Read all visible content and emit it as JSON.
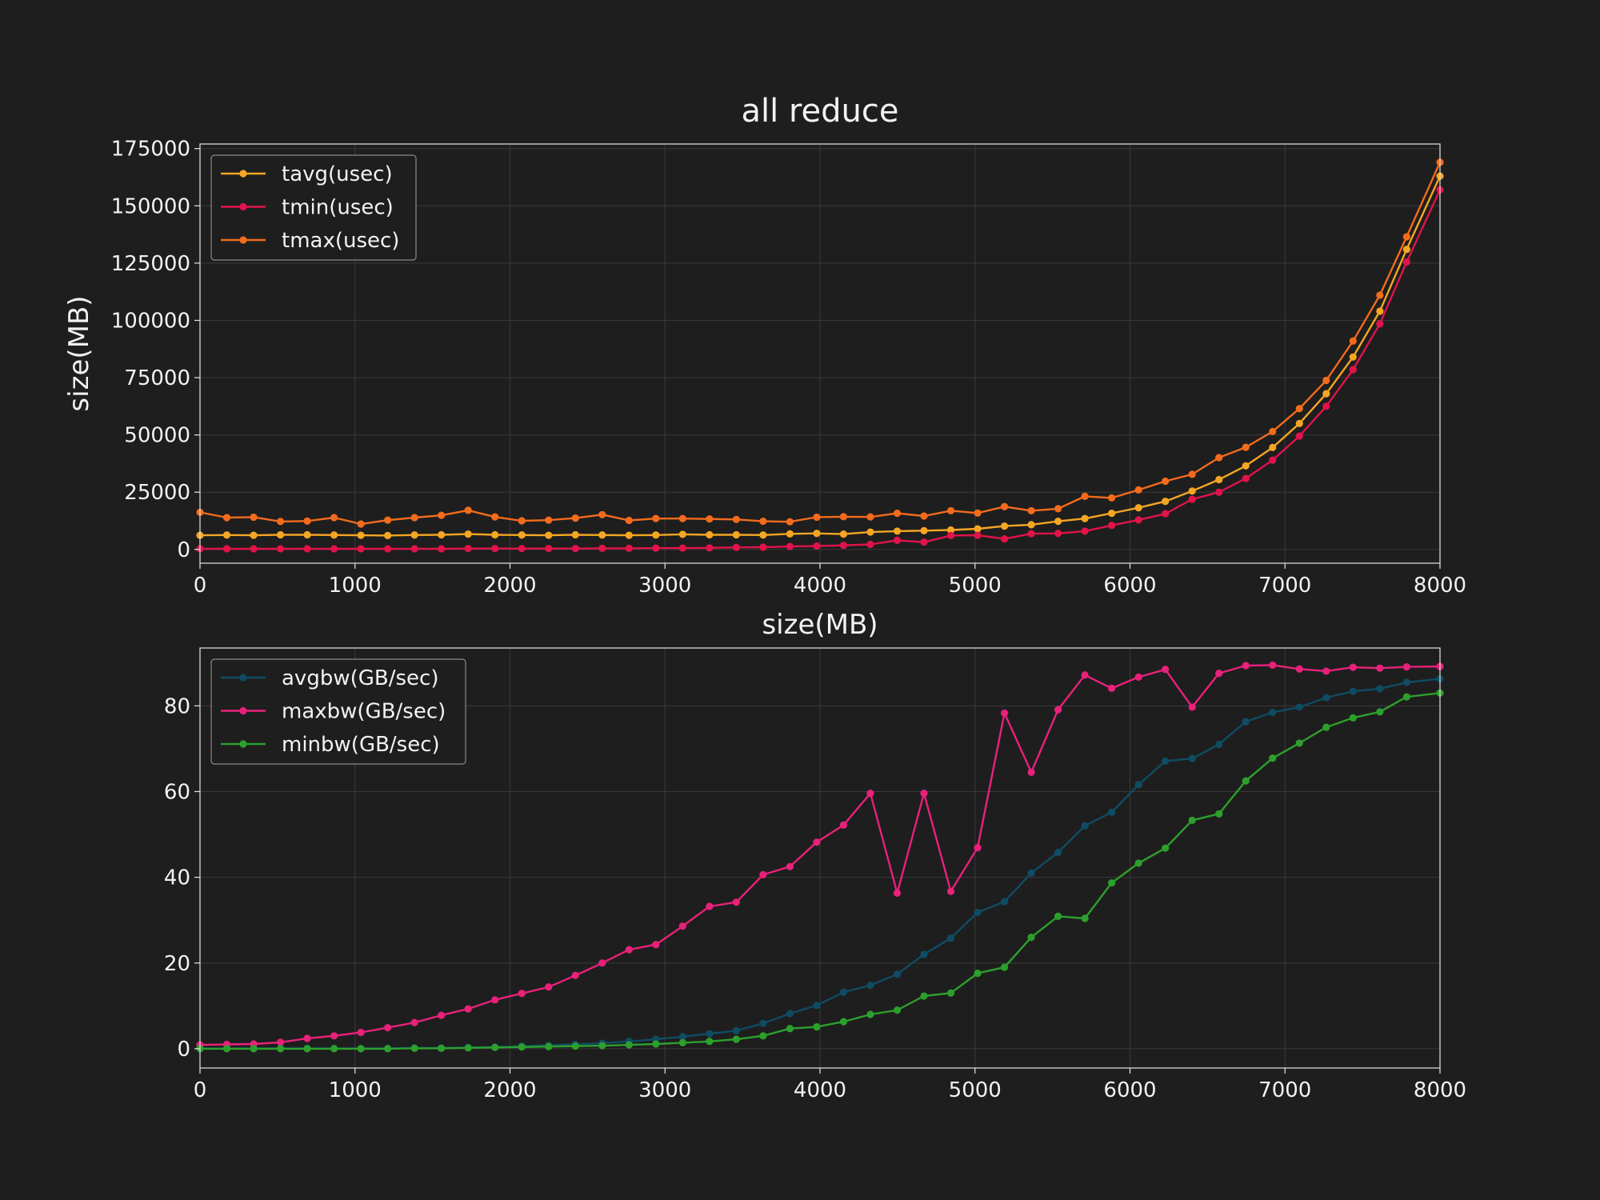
{
  "figure": {
    "title": "all reduce",
    "background": "#1e1e1e",
    "grid_color": "#3a3a3a"
  },
  "chart_data": [
    {
      "type": "line",
      "title": "all reduce",
      "xlabel": "size(MB)",
      "ylabel": "size(MB)",
      "xlim": [
        0,
        8000
      ],
      "ylim": [
        -6000,
        177000
      ],
      "xticks": [
        0,
        1000,
        2000,
        3000,
        4000,
        5000,
        6000,
        7000,
        8000
      ],
      "yticks": [
        0,
        25000,
        50000,
        75000,
        100000,
        125000,
        150000,
        175000
      ],
      "grid": true,
      "legend_position": "top-left",
      "x": [
        0,
        173,
        346,
        519,
        692,
        865,
        1038,
        1211,
        1384,
        1557,
        1730,
        1903,
        2076,
        2249,
        2422,
        2595,
        2768,
        2941,
        3114,
        3287,
        3460,
        3633,
        3806,
        3979,
        4152,
        4325,
        4498,
        4671,
        4844,
        5017,
        5190,
        5363,
        5536,
        5709,
        5882,
        6055,
        6228,
        6401,
        6574,
        6747,
        6920,
        7093,
        7266,
        7439,
        7612,
        7785,
        8000
      ],
      "series": [
        {
          "name": "tavg(usec)",
          "color": "#f5a623",
          "values": [
            6200,
            6300,
            6200,
            6400,
            6400,
            6300,
            6200,
            6100,
            6300,
            6400,
            6700,
            6400,
            6300,
            6200,
            6400,
            6300,
            6200,
            6300,
            6600,
            6400,
            6400,
            6300,
            6800,
            7000,
            6700,
            7600,
            8000,
            8200,
            8500,
            9000,
            10200,
            10800,
            12300,
            13500,
            15800,
            18200,
            21000,
            25500,
            30500,
            36500,
            44500,
            55000,
            68000,
            84000,
            104000,
            131000,
            163000
          ]
        },
        {
          "name": "tmin(usec)",
          "color": "#e0134b",
          "values": [
            300,
            300,
            300,
            300,
            300,
            300,
            300,
            300,
            300,
            300,
            400,
            400,
            400,
            400,
            400,
            500,
            500,
            600,
            600,
            700,
            900,
            1000,
            1300,
            1500,
            1800,
            2200,
            4000,
            3200,
            6100,
            6200,
            4600,
            6900,
            7000,
            8000,
            10500,
            12900,
            15600,
            21900,
            25000,
            31000,
            39000,
            49500,
            62500,
            78500,
            98500,
            125500,
            157000
          ]
        },
        {
          "name": "tmax(usec)",
          "color": "#f36b1c",
          "values": [
            16200,
            13900,
            14100,
            12200,
            12400,
            13900,
            11100,
            12800,
            13900,
            14900,
            17100,
            14200,
            12500,
            12800,
            13700,
            15200,
            12700,
            13500,
            13500,
            13300,
            13100,
            12300,
            12100,
            14100,
            14300,
            14200,
            15800,
            14600,
            16900,
            15900,
            18700,
            16900,
            17800,
            23200,
            22500,
            26000,
            29800,
            32800,
            40100,
            44600,
            51500,
            61500,
            73800,
            91000,
            111000,
            136500,
            169000
          ]
        }
      ]
    },
    {
      "type": "line",
      "title": "",
      "xlabel": "",
      "ylabel": "",
      "xlim": [
        0,
        8000
      ],
      "ylim": [
        -4.5,
        93.5
      ],
      "xticks": [
        0,
        1000,
        2000,
        3000,
        4000,
        5000,
        6000,
        7000,
        8000
      ],
      "yticks": [
        0,
        20,
        40,
        60,
        80
      ],
      "grid": true,
      "legend_position": "top-left",
      "x": [
        0,
        173,
        346,
        519,
        692,
        865,
        1038,
        1211,
        1384,
        1557,
        1730,
        1903,
        2076,
        2249,
        2422,
        2595,
        2768,
        2941,
        3114,
        3287,
        3460,
        3633,
        3806,
        3979,
        4152,
        4325,
        4498,
        4671,
        4844,
        5017,
        5190,
        5363,
        5536,
        5709,
        5882,
        6055,
        6228,
        6401,
        6574,
        6747,
        6920,
        7093,
        7266,
        7439,
        7612,
        7785,
        8000
      ],
      "series": [
        {
          "name": "avgbw(GB/sec)",
          "color": "#0f4c64",
          "values": [
            0.1,
            0.1,
            0.1,
            0.1,
            0.1,
            0.1,
            0.1,
            0.1,
            0.2,
            0.2,
            0.3,
            0.4,
            0.6,
            0.8,
            1.0,
            1.3,
            1.7,
            2.2,
            2.8,
            3.5,
            4.2,
            5.9,
            8.2,
            10.1,
            13.2,
            14.8,
            17.4,
            22.0,
            25.8,
            31.8,
            34.3,
            41.0,
            45.8,
            52.0,
            55.2,
            61.6,
            67.1,
            67.7,
            71.0,
            76.3,
            78.5,
            79.7,
            81.9,
            83.4,
            84.0,
            85.5,
            86.3
          ]
        },
        {
          "name": "maxbw(GB/sec)",
          "color": "#e8217a",
          "values": [
            0.9,
            1.0,
            1.1,
            1.5,
            2.4,
            3.0,
            3.8,
            4.9,
            6.1,
            7.8,
            9.3,
            11.4,
            12.9,
            14.4,
            17.1,
            20.0,
            23.1,
            24.3,
            28.6,
            33.2,
            34.2,
            40.6,
            42.5,
            48.2,
            52.2,
            59.6,
            36.3,
            59.6,
            36.7,
            46.9,
            78.3,
            64.5,
            79.1,
            87.2,
            84.1,
            86.7,
            88.5,
            79.7,
            87.6,
            89.4,
            89.5,
            88.6,
            88.1,
            89.0,
            88.8,
            89.1,
            89.2
          ]
        },
        {
          "name": "minbw(GB/sec)",
          "color": "#2ca02c",
          "values": [
            0.0,
            0.0,
            0.0,
            0.0,
            0.0,
            0.0,
            0.0,
            0.0,
            0.1,
            0.1,
            0.2,
            0.3,
            0.4,
            0.5,
            0.6,
            0.7,
            0.9,
            1.1,
            1.4,
            1.7,
            2.2,
            3.0,
            4.7,
            5.1,
            6.3,
            8.0,
            9.0,
            12.3,
            13.0,
            17.6,
            19.0,
            26.0,
            30.9,
            30.4,
            38.7,
            43.3,
            46.8,
            53.3,
            54.8,
            62.5,
            67.8,
            71.3,
            75.0,
            77.2,
            78.6,
            82.1,
            83.0
          ]
        }
      ]
    }
  ]
}
